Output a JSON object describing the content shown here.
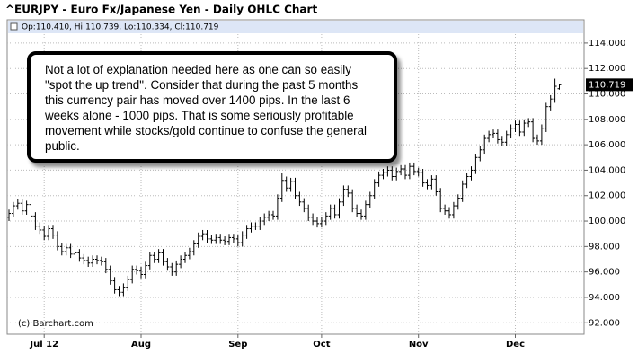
{
  "chart_data": {
    "type": "ohlc",
    "title": "^EURJPY - Euro Fx/Japanese Yen - Daily OHLC Chart",
    "readout": "Op:110.410, Hi:110.739, Lo:110.334, Cl:110.719",
    "source": "(c) Barchart.com",
    "annotation": "Not a lot of explanation needed here as one can so easily \"spot the up trend\". Consider that during the past 5 months this currency pair has moved over 1400 pips. In the last 6 weeks alone - 1000 pips. That is some seriously profitable movement while stocks/gold continue to confuse the general public.",
    "color": "#000000",
    "grid": true,
    "ylim": [
      91.1,
      114.7
    ],
    "yticks": [
      {
        "value": 92,
        "label": "92.000"
      },
      {
        "value": 94,
        "label": "94.000"
      },
      {
        "value": 96,
        "label": "96.000"
      },
      {
        "value": 98,
        "label": "98.000"
      },
      {
        "value": 100,
        "label": "100.000"
      },
      {
        "value": 102,
        "label": "102.000"
      },
      {
        "value": 104,
        "label": "104.000"
      },
      {
        "value": 106,
        "label": "106.000"
      },
      {
        "value": 108,
        "label": "108.000"
      },
      {
        "value": 110,
        "label": "110.000"
      },
      {
        "value": 112,
        "label": "112.000"
      },
      {
        "value": 114,
        "label": "114.000"
      }
    ],
    "categories": [
      null,
      null,
      null,
      null,
      null,
      null,
      null,
      null,
      "Jul 12",
      null,
      null,
      null,
      null,
      null,
      null,
      null,
      null,
      null,
      null,
      null,
      null,
      null,
      null,
      null,
      null,
      null,
      null,
      null,
      null,
      null,
      "Aug",
      null,
      null,
      null,
      null,
      null,
      null,
      null,
      null,
      null,
      null,
      null,
      null,
      null,
      null,
      null,
      null,
      null,
      null,
      null,
      null,
      null,
      "Sep",
      null,
      null,
      null,
      null,
      null,
      null,
      null,
      null,
      null,
      null,
      null,
      null,
      null,
      null,
      null,
      null,
      null,
      null,
      "Oct",
      null,
      null,
      null,
      null,
      null,
      null,
      null,
      null,
      null,
      null,
      null,
      null,
      null,
      null,
      null,
      null,
      null,
      null,
      null,
      null,
      null,
      "Nov",
      null,
      null,
      null,
      null,
      null,
      null,
      null,
      null,
      null,
      null,
      null,
      null,
      null,
      null,
      null,
      null,
      null,
      null,
      null,
      null,
      null,
      "Dec",
      null,
      null,
      null,
      null,
      null,
      null,
      null,
      null,
      null,
      null
    ],
    "open": [
      100.3,
      100.6,
      101.2,
      101.4,
      100.8,
      101.3,
      100.4,
      99.6,
      99.3,
      98.8,
      99.4,
      98.9,
      98.0,
      97.6,
      97.9,
      97.4,
      97.5,
      97.1,
      96.9,
      96.7,
      97.0,
      96.9,
      96.8,
      96.2,
      95.3,
      94.6,
      94.4,
      94.8,
      95.4,
      96.2,
      96.1,
      95.8,
      96.5,
      97.3,
      97.0,
      97.5,
      96.8,
      96.4,
      96.0,
      96.6,
      97.0,
      97.3,
      97.6,
      98.2,
      98.8,
      99.0,
      98.6,
      98.5,
      98.7,
      98.5,
      98.4,
      98.7,
      98.6,
      98.3,
      98.9,
      99.4,
      99.6,
      99.6,
      100.0,
      100.3,
      100.5,
      100.4,
      101.8,
      103.2,
      102.6,
      103.1,
      102.0,
      101.5,
      101.0,
      100.3,
      100.0,
      99.8,
      100.0,
      100.4,
      101.0,
      100.5,
      101.5,
      102.5,
      102.2,
      101.0,
      100.6,
      100.4,
      101.3,
      102.0,
      103.0,
      103.6,
      103.8,
      104.0,
      103.5,
      103.9,
      104.1,
      103.6,
      104.3,
      103.9,
      103.8,
      103.0,
      102.8,
      103.3,
      102.3,
      101.0,
      100.8,
      100.5,
      101.2,
      101.8,
      102.9,
      103.5,
      104.0,
      105.0,
      105.6,
      106.5,
      106.8,
      106.9,
      106.4,
      106.2,
      106.8,
      107.3,
      107.6,
      107.0,
      107.7,
      107.8,
      106.5,
      106.3,
      107.3,
      109.0,
      109.6,
      110.41
    ],
    "high": [
      100.9,
      101.5,
      101.7,
      101.7,
      101.6,
      101.6,
      100.7,
      99.9,
      99.6,
      99.7,
      99.7,
      99.2,
      98.3,
      98.2,
      98.2,
      97.8,
      97.8,
      97.4,
      97.2,
      97.3,
      97.3,
      97.2,
      97.1,
      96.5,
      95.6,
      94.9,
      95.1,
      95.7,
      96.5,
      96.5,
      96.4,
      96.8,
      97.6,
      97.6,
      97.8,
      97.8,
      97.1,
      96.7,
      96.9,
      97.3,
      97.6,
      97.9,
      98.5,
      99.1,
      99.3,
      99.3,
      98.9,
      99.0,
      99.0,
      98.8,
      99.0,
      99.0,
      98.9,
      99.2,
      99.7,
      99.9,
      99.9,
      100.3,
      100.6,
      100.8,
      100.8,
      102.1,
      103.8,
      103.5,
      103.4,
      103.4,
      102.3,
      101.8,
      101.3,
      100.6,
      100.3,
      100.3,
      100.7,
      101.3,
      101.3,
      101.8,
      102.8,
      102.8,
      102.5,
      101.3,
      100.9,
      101.6,
      102.3,
      103.3,
      103.9,
      104.1,
      104.3,
      104.3,
      104.2,
      104.4,
      104.4,
      104.6,
      104.6,
      104.2,
      104.1,
      103.3,
      103.6,
      103.6,
      102.6,
      101.3,
      101.1,
      101.5,
      102.1,
      103.2,
      103.8,
      104.3,
      105.3,
      105.9,
      106.8,
      107.1,
      107.2,
      107.2,
      106.7,
      107.1,
      107.6,
      107.9,
      107.9,
      108.0,
      108.1,
      108.1,
      106.8,
      107.6,
      109.3,
      109.9,
      111.2,
      110.739
    ],
    "low": [
      100.0,
      100.3,
      100.9,
      100.5,
      100.5,
      100.1,
      99.3,
      99.0,
      98.5,
      98.5,
      98.6,
      97.7,
      97.3,
      97.3,
      97.1,
      97.1,
      96.8,
      96.6,
      96.4,
      96.4,
      96.6,
      96.5,
      95.9,
      95.0,
      94.3,
      94.1,
      94.1,
      94.5,
      95.1,
      95.8,
      95.5,
      95.5,
      96.2,
      96.7,
      96.7,
      96.5,
      96.1,
      95.7,
      95.7,
      96.3,
      96.7,
      97.0,
      97.3,
      97.9,
      98.5,
      98.3,
      98.2,
      98.2,
      98.2,
      98.1,
      98.1,
      98.3,
      98.0,
      98.0,
      98.6,
      99.1,
      99.3,
      99.3,
      99.7,
      100.0,
      100.1,
      100.1,
      101.5,
      102.3,
      102.3,
      101.7,
      101.2,
      100.7,
      100.0,
      99.7,
      99.5,
      99.5,
      99.7,
      100.1,
      100.2,
      100.2,
      101.2,
      101.9,
      100.7,
      100.3,
      100.1,
      100.1,
      101.0,
      101.7,
      102.7,
      103.3,
      103.5,
      103.2,
      103.2,
      103.6,
      103.3,
      103.3,
      103.6,
      103.5,
      102.7,
      102.5,
      102.5,
      102.0,
      100.7,
      100.5,
      100.2,
      100.2,
      100.9,
      101.5,
      102.6,
      103.2,
      103.7,
      104.7,
      105.3,
      106.2,
      106.5,
      106.1,
      105.9,
      105.9,
      106.5,
      107.0,
      106.7,
      106.7,
      107.4,
      106.2,
      106.0,
      106.0,
      107.0,
      108.7,
      109.3,
      110.334
    ],
    "close": [
      100.6,
      101.2,
      101.4,
      100.8,
      101.3,
      100.4,
      99.6,
      99.3,
      98.8,
      99.4,
      98.9,
      98.0,
      97.6,
      97.9,
      97.4,
      97.5,
      97.1,
      96.9,
      96.7,
      97.0,
      96.9,
      96.8,
      96.2,
      95.3,
      94.6,
      94.4,
      94.8,
      95.4,
      96.2,
      96.1,
      95.8,
      96.5,
      97.3,
      97.0,
      97.5,
      96.8,
      96.4,
      96.0,
      96.6,
      97.0,
      97.3,
      97.6,
      98.2,
      98.8,
      99.0,
      98.6,
      98.5,
      98.7,
      98.5,
      98.4,
      98.7,
      98.6,
      98.3,
      98.9,
      99.4,
      99.6,
      99.6,
      100.0,
      100.3,
      100.5,
      100.4,
      101.8,
      103.2,
      102.6,
      103.1,
      102.0,
      101.5,
      101.0,
      100.3,
      100.0,
      99.8,
      100.0,
      100.4,
      101.0,
      100.5,
      101.5,
      102.5,
      102.2,
      101.0,
      100.6,
      100.4,
      101.3,
      102.0,
      103.0,
      103.6,
      103.8,
      104.0,
      103.5,
      103.9,
      104.1,
      103.6,
      104.3,
      103.9,
      103.8,
      103.0,
      102.8,
      103.3,
      102.3,
      101.0,
      100.8,
      100.5,
      101.2,
      101.8,
      102.9,
      103.5,
      104.0,
      105.0,
      105.6,
      106.5,
      106.8,
      106.9,
      106.4,
      106.2,
      106.8,
      107.3,
      107.6,
      107.0,
      107.7,
      107.8,
      106.5,
      106.3,
      107.3,
      109.0,
      109.6,
      110.6,
      110.719
    ]
  }
}
